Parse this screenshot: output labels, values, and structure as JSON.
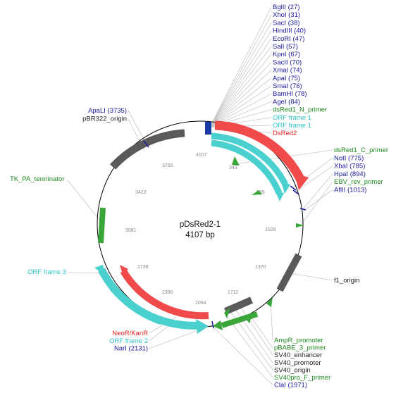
{
  "plasmid": {
    "name": "pDsRed2-1",
    "size": "4107 bp"
  },
  "colors": {
    "enzyme": "#1a1a9a",
    "primer": "#1f8a1f",
    "orf": "#2cc4c4",
    "gene": "#e81f1f",
    "feature": "#222222",
    "misc_feature_block": "#5a5a5a",
    "leader": "#c8c8c8",
    "backbone": "#000000"
  },
  "ticks": [
    "343",
    "685",
    "1028",
    "1370",
    "1712",
    "2054",
    "2396",
    "2738",
    "3081",
    "3423",
    "3765",
    "4107"
  ],
  "labels": {
    "top_right": [
      {
        "text": "BglII (27)",
        "kind": "enzyme"
      },
      {
        "text": "XhoI (31)",
        "kind": "enzyme"
      },
      {
        "text": "SacI (38)",
        "kind": "enzyme"
      },
      {
        "text": "HindIII (40)",
        "kind": "enzyme"
      },
      {
        "text": "EcoRI (47)",
        "kind": "enzyme"
      },
      {
        "text": "SalI (57)",
        "kind": "enzyme"
      },
      {
        "text": "KpnI (67)",
        "kind": "enzyme"
      },
      {
        "text": "SacII (70)",
        "kind": "enzyme"
      },
      {
        "text": "XmaI (74)",
        "kind": "enzyme"
      },
      {
        "text": "ApaI (75)",
        "kind": "enzyme"
      },
      {
        "text": "SmaI (76)",
        "kind": "enzyme"
      },
      {
        "text": "BamHI (78)",
        "kind": "enzyme"
      },
      {
        "text": "AgeI (84)",
        "kind": "enzyme"
      },
      {
        "text": "dsRed1_N_primer",
        "kind": "primer"
      },
      {
        "text": "ORF frame 1",
        "kind": "orf"
      },
      {
        "text": "ORF frame 1",
        "kind": "orf"
      },
      {
        "text": "DsRed2",
        "kind": "gene"
      }
    ],
    "right": [
      {
        "text": "dsRed1_C_primer",
        "kind": "primer"
      },
      {
        "text": "NotI (775)",
        "kind": "enzyme"
      },
      {
        "text": "XbaI (785)",
        "kind": "enzyme"
      },
      {
        "text": "HpaI (894)",
        "kind": "enzyme"
      },
      {
        "text": "EBV_rev_primer",
        "kind": "primer"
      },
      {
        "text": "AflII (1013)",
        "kind": "enzyme"
      }
    ],
    "f1": {
      "text": "f1_origin",
      "kind": "feature"
    },
    "bottom_right": [
      {
        "text": "AmpR_promoter",
        "kind": "primer"
      },
      {
        "text": "pBABE_3_primer",
        "kind": "primer"
      },
      {
        "text": "SV40_enhancer",
        "kind": "feature"
      },
      {
        "text": "SV40_promoter",
        "kind": "feature"
      },
      {
        "text": "SV40_origin",
        "kind": "feature"
      },
      {
        "text": "SV40pro_F_primer",
        "kind": "primer"
      },
      {
        "text": "ClaI (1971)",
        "kind": "enzyme"
      }
    ],
    "bottom_left": [
      {
        "text": "NeoR/KanR",
        "kind": "gene"
      },
      {
        "text": "ORF frame 2",
        "kind": "orf"
      },
      {
        "text": "NarI (2131)",
        "kind": "enzyme"
      }
    ],
    "orf3": {
      "text": "ORF frame 3",
      "kind": "orf"
    },
    "tk": {
      "text": "TK_PA_terminator",
      "kind": "primer"
    },
    "top_left": [
      {
        "text": "ApaLI (3735)",
        "kind": "enzyme"
      },
      {
        "text": "pBR322_origin",
        "kind": "feature"
      }
    ]
  }
}
